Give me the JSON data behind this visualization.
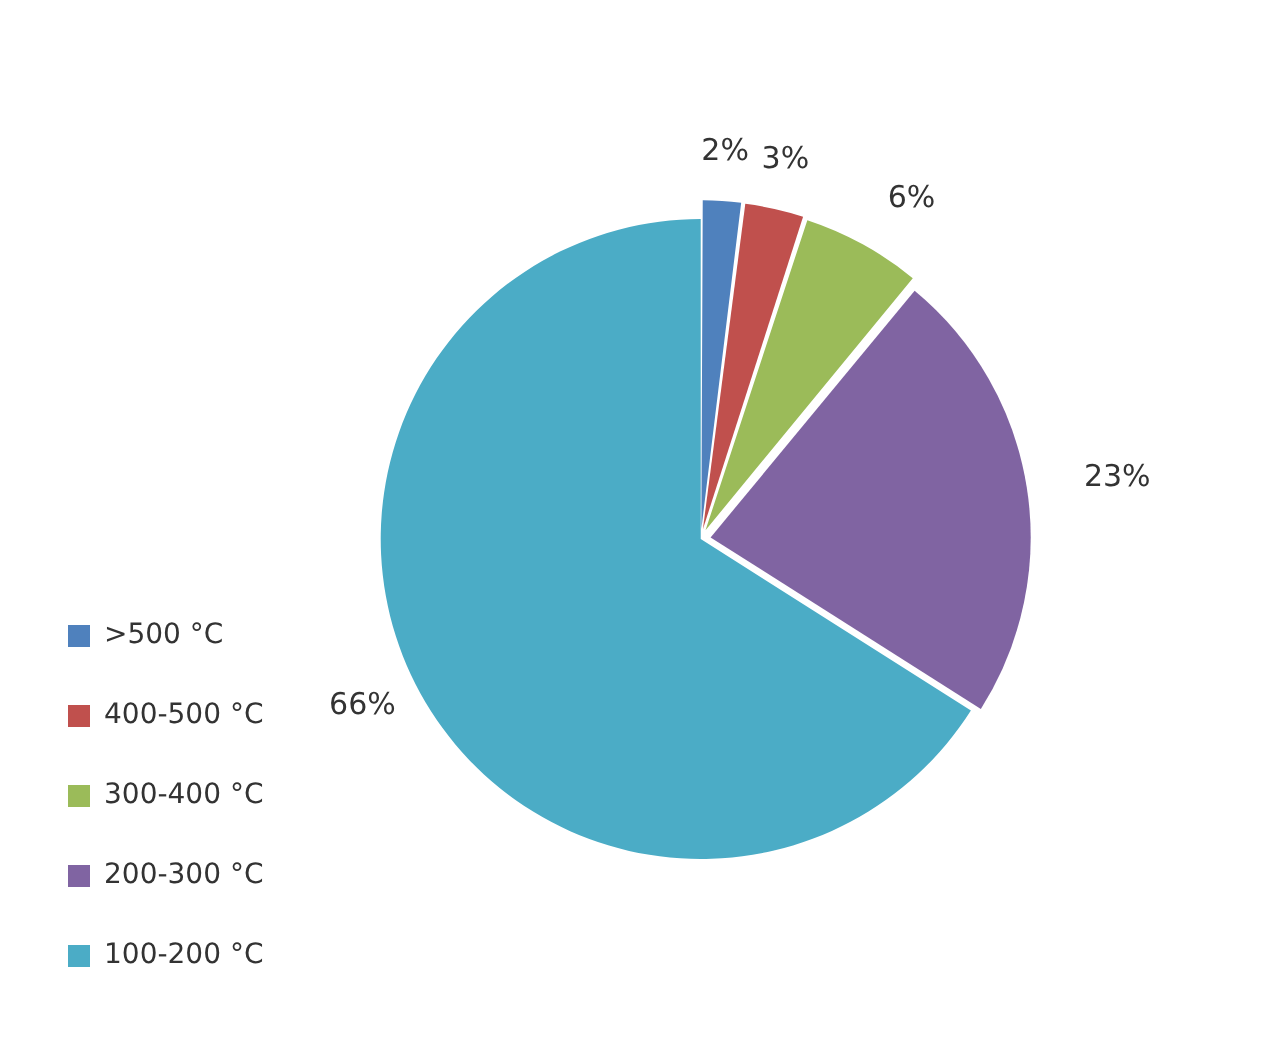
{
  "chart_data": {
    "type": "pie",
    "categories": [
      ">500 °C",
      "400-500 °C",
      "300-400 °C",
      "200-300 °C",
      "100-200 °C"
    ],
    "values": [
      2,
      3,
      6,
      23,
      66
    ],
    "value_labels": [
      "2%",
      "3%",
      "6%",
      "23%",
      "66%"
    ],
    "colors": [
      "#4f81bd",
      "#c0504d",
      "#9bbb59",
      "#8064a2",
      "#4bacc6"
    ],
    "legend": "bottom left"
  }
}
